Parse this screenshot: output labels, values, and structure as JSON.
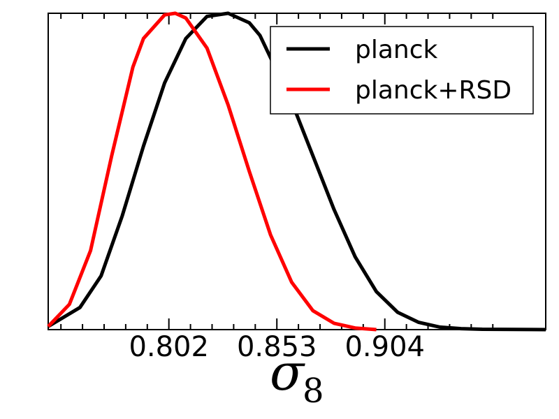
{
  "chart_data": {
    "type": "line",
    "title": "",
    "xlabel": "σ",
    "xlabel_subscript": "8",
    "ylabel": "",
    "xlim": [
      0.745,
      0.98
    ],
    "ylim": [
      0,
      1.0
    ],
    "xticks": [
      0.802,
      0.853,
      0.904
    ],
    "xtick_labels": [
      "0.802",
      "0.853",
      "0.904"
    ],
    "grid": false,
    "legend_position": "top-right",
    "series": [
      {
        "name": "planck",
        "color": "#000000",
        "x": [
          0.745,
          0.76,
          0.77,
          0.78,
          0.79,
          0.8,
          0.81,
          0.82,
          0.83,
          0.84,
          0.845,
          0.85,
          0.86,
          0.87,
          0.88,
          0.89,
          0.9,
          0.91,
          0.92,
          0.93,
          0.94,
          0.95,
          0.98
        ],
        "y": [
          0.01,
          0.07,
          0.17,
          0.36,
          0.58,
          0.78,
          0.92,
          0.99,
          1.0,
          0.97,
          0.93,
          0.86,
          0.72,
          0.55,
          0.38,
          0.23,
          0.12,
          0.055,
          0.023,
          0.008,
          0.003,
          0.001,
          0.0
        ]
      },
      {
        "name": "planck+RSD",
        "color": "#ff0000",
        "x": [
          0.745,
          0.755,
          0.765,
          0.775,
          0.785,
          0.79,
          0.8,
          0.805,
          0.81,
          0.82,
          0.83,
          0.84,
          0.85,
          0.86,
          0.87,
          0.88,
          0.89,
          0.9
        ],
        "y": [
          0.01,
          0.08,
          0.25,
          0.55,
          0.83,
          0.92,
          0.995,
          1.0,
          0.985,
          0.89,
          0.71,
          0.5,
          0.3,
          0.15,
          0.06,
          0.02,
          0.005,
          0.0
        ]
      }
    ]
  }
}
